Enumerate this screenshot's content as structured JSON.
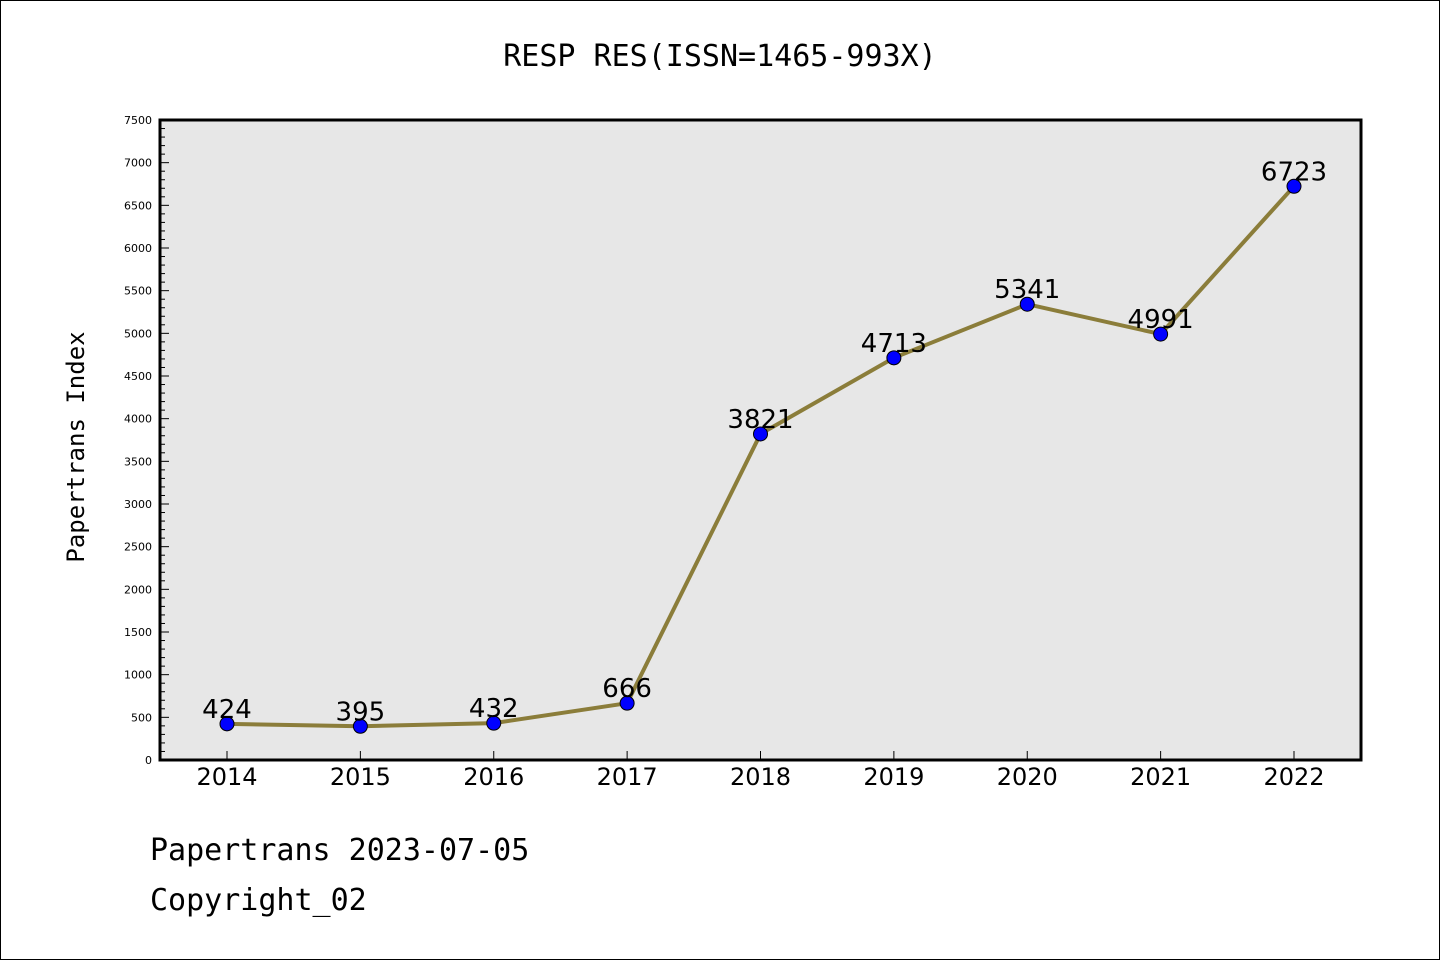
{
  "chart_data": {
    "type": "line",
    "title": "RESP RES(ISSN=1465-993X)",
    "ylabel": "Papertrans Index",
    "xlabel": "",
    "categories": [
      "2014",
      "2015",
      "2016",
      "2017",
      "2018",
      "2019",
      "2020",
      "2021",
      "2022"
    ],
    "series": [
      {
        "values": [
          424,
          395,
          432,
          666,
          3821,
          4713,
          5341,
          4991,
          6723
        ]
      }
    ],
    "data_labels": [
      "424",
      "395",
      "432",
      "666",
      "3821",
      "4713",
      "5341",
      "4991",
      "6723"
    ],
    "ylim": [
      0,
      7500
    ],
    "yticks": [
      0,
      500,
      1000,
      1500,
      2000,
      2500,
      3000,
      3500,
      4000,
      4500,
      5000,
      5500,
      6000,
      6500,
      7000,
      7500
    ],
    "grid": false,
    "colors": {
      "line": "#8b7d3a",
      "marker": "#0000ff",
      "plot_bg": "#e7e7e7"
    }
  },
  "footer": {
    "line1": "Papertrans 2023-07-05",
    "line2": "Copyright_02"
  }
}
